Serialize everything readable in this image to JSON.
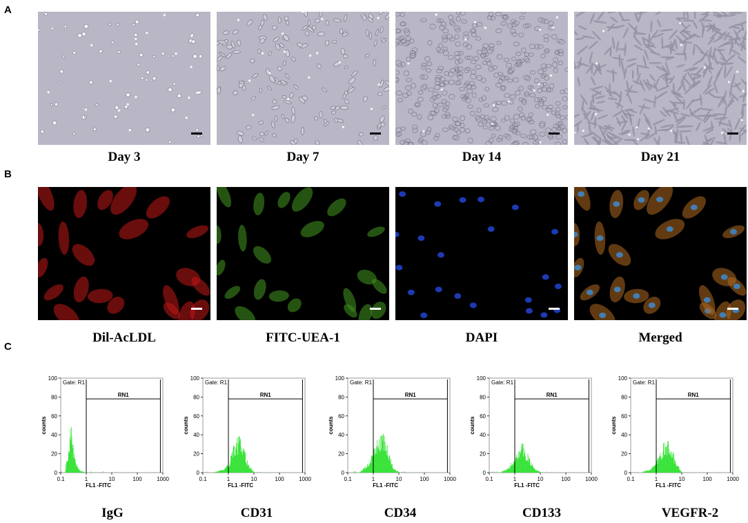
{
  "panels": {
    "a": "A",
    "b": "B",
    "c": "C"
  },
  "row_a": {
    "captions": [
      "Day 3",
      "Day 7",
      "Day 14",
      "Day 21"
    ]
  },
  "row_b": {
    "captions": [
      "Dil-AcLDL",
      "FITC-UEA-1",
      "DAPI",
      "Merged"
    ]
  },
  "row_c": {
    "captions": [
      "IgG",
      "CD31",
      "CD34",
      "CD133",
      "VEGFR-2"
    ],
    "gate_label": "Gate: R1",
    "region_label": "RN1",
    "xlabel": "FL1 -FITC",
    "ylabel": "counts",
    "x_ticks": [
      "0.1",
      "1",
      "10",
      "100",
      "1000"
    ],
    "y_ticks": [
      "0",
      "20",
      "40",
      "60",
      "80",
      "100"
    ],
    "colors": {
      "histogram": "#22e022",
      "axis": "#000000"
    }
  },
  "chart_data": [
    {
      "type": "area",
      "title": "IgG",
      "xlabel": "FL1 -FITC",
      "ylabel": "counts",
      "xscale": "log",
      "xlim": [
        0.1,
        1000
      ],
      "ylim": [
        0,
        100
      ],
      "region": {
        "name": "RN1",
        "x": [
          1,
          800
        ]
      },
      "series": [
        {
          "x": [
            0.15,
            0.2,
            0.25,
            0.3,
            0.35,
            0.45,
            0.6,
            1.0
          ],
          "values": [
            2,
            25,
            45,
            35,
            18,
            6,
            2,
            0
          ]
        }
      ]
    },
    {
      "type": "area",
      "title": "CD31",
      "xlabel": "FL1 -FITC",
      "ylabel": "counts",
      "xscale": "log",
      "xlim": [
        0.1,
        1000
      ],
      "ylim": [
        0,
        100
      ],
      "region": {
        "name": "RN1",
        "x": [
          1,
          800
        ]
      },
      "series": [
        {
          "x": [
            0.3,
            0.6,
            1,
            1.5,
            2,
            3,
            4,
            6,
            10
          ],
          "values": [
            1,
            3,
            8,
            25,
            33,
            35,
            25,
            8,
            1
          ]
        }
      ]
    },
    {
      "type": "area",
      "title": "CD34",
      "xlabel": "FL1 -FITC",
      "ylabel": "counts",
      "xscale": "log",
      "xlim": [
        0.1,
        1000
      ],
      "ylim": [
        0,
        100
      ],
      "region": {
        "name": "RN1",
        "x": [
          1,
          800
        ]
      },
      "series": [
        {
          "x": [
            0.3,
            0.6,
            1,
            1.5,
            2,
            3,
            4,
            6,
            10
          ],
          "values": [
            1,
            8,
            20,
            33,
            40,
            35,
            20,
            5,
            1
          ]
        }
      ]
    },
    {
      "type": "area",
      "title": "CD133",
      "xlabel": "FL1 -FITC",
      "ylabel": "counts",
      "xscale": "log",
      "xlim": [
        0.1,
        1000
      ],
      "ylim": [
        0,
        100
      ],
      "region": {
        "name": "RN1",
        "x": [
          1,
          800
        ]
      },
      "series": [
        {
          "x": [
            0.3,
            0.6,
            1,
            1.5,
            2,
            3,
            4,
            6,
            10
          ],
          "values": [
            1,
            5,
            18,
            27,
            28,
            22,
            12,
            4,
            1
          ]
        }
      ]
    },
    {
      "type": "area",
      "title": "VEGFR-2",
      "xlabel": "FL1 -FITC",
      "ylabel": "counts",
      "xscale": "log",
      "xlim": [
        0.1,
        1000
      ],
      "ylim": [
        0,
        100
      ],
      "region": {
        "name": "RN1",
        "x": [
          1,
          800
        ]
      },
      "series": [
        {
          "x": [
            0.3,
            0.6,
            1,
            1.5,
            2,
            3,
            4,
            6,
            10
          ],
          "values": [
            1,
            4,
            10,
            22,
            28,
            30,
            25,
            10,
            1
          ]
        }
      ]
    }
  ]
}
